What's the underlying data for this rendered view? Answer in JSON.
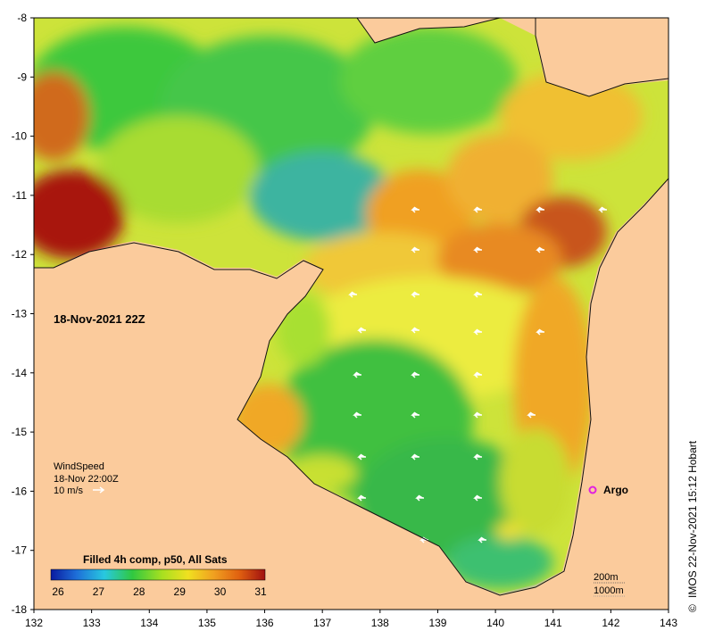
{
  "map": {
    "date_label": "18-Nov-2021 22Z",
    "x_ticks": [
      "132",
      "133",
      "134",
      "135",
      "136",
      "137",
      "138",
      "139",
      "140",
      "141",
      "142",
      "143"
    ],
    "y_ticks": [
      "-8",
      "-9",
      "-10",
      "-11",
      "-12",
      "-13",
      "-14",
      "-15",
      "-16",
      "-17",
      "-18"
    ],
    "wind": {
      "title": "WindSpeed",
      "time": "18-Nov 22:00Z",
      "scale": "10 m/s"
    },
    "argo_label": "Argo",
    "colorbar": {
      "title": "Filled 4h comp, p50, All Sats",
      "ticks": [
        "26",
        "27",
        "28",
        "29",
        "30",
        "31"
      ],
      "colors": [
        "#0a1aa0",
        "#1e6fd8",
        "#28c8e0",
        "#30c840",
        "#a8e020",
        "#f0e020",
        "#f0a020",
        "#e06010",
        "#a01010"
      ]
    },
    "depth_labels": [
      "200m",
      "1000m"
    ],
    "credit": "IMOS 22-Nov-2021 15:12 Hobart",
    "copyright_symbol": "©",
    "colors": {
      "land": "#fbcb9c",
      "warm": "#f2a02a",
      "yellow": "#f2e62a",
      "green": "#3cc83c",
      "teal": "#3cb4a0",
      "hot": "#a81410"
    }
  }
}
